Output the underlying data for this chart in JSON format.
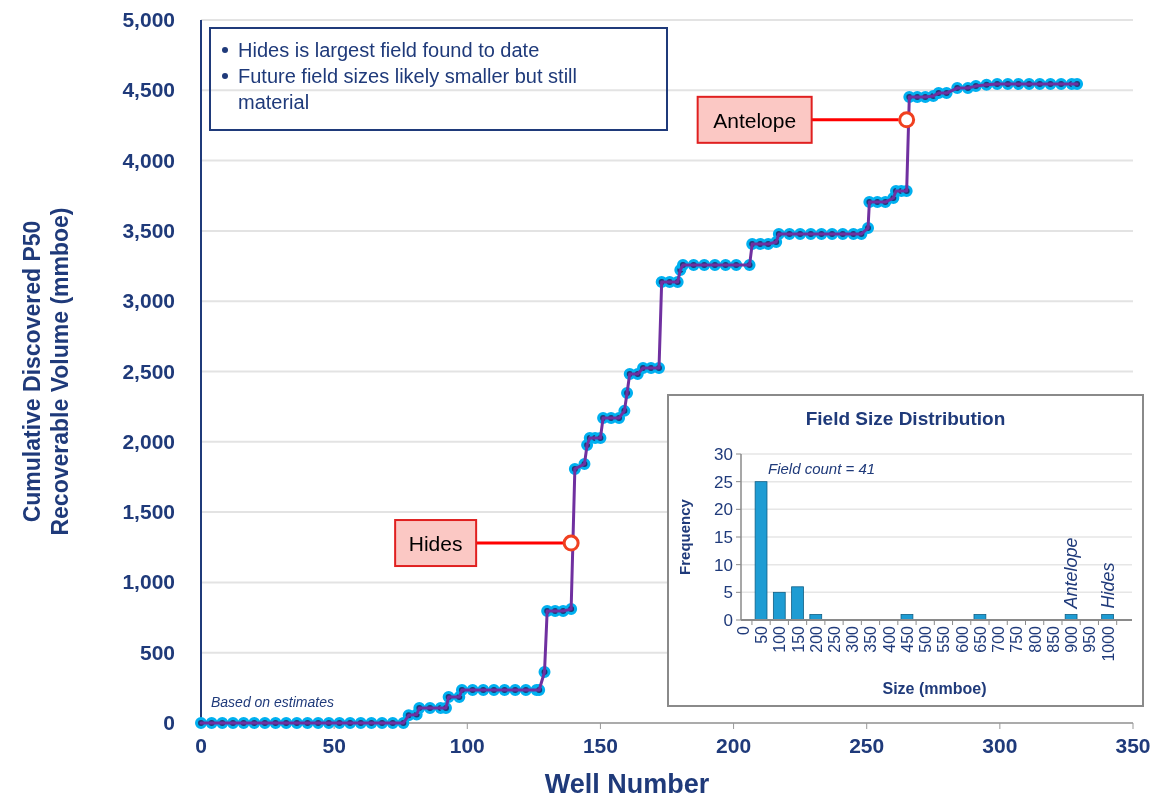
{
  "chart_data": [
    {
      "type": "line",
      "xlabel": "Well Number",
      "ylabel": "Cumulative Discovered P50\nRecoverable  Volume (mmboe)",
      "xlim": [
        0,
        350
      ],
      "xticks": [
        0,
        50,
        100,
        150,
        200,
        250,
        300,
        350
      ],
      "ylim": [
        0,
        5000
      ],
      "yticks": [
        0,
        500,
        {
          "value": 1000,
          "label": "1,000"
        },
        {
          "value": 1500,
          "label": "1,500"
        },
        {
          "value": 2000,
          "label": "2,000"
        },
        {
          "value": 2500,
          "label": "2,500"
        },
        {
          "value": 3000,
          "label": "3,000"
        },
        {
          "value": 3500,
          "label": "3,500"
        },
        {
          "value": 4000,
          "label": "4,000"
        },
        {
          "value": 4500,
          "label": "4,500"
        },
        {
          "value": 5000,
          "label": "5,000"
        }
      ],
      "grid": "y",
      "x": [
        0,
        4,
        8,
        12,
        16,
        20,
        24,
        28,
        32,
        36,
        40,
        44,
        48,
        52,
        56,
        60,
        64,
        68,
        72,
        76,
        78,
        81,
        82,
        86,
        90,
        92,
        93,
        97,
        98,
        102,
        106,
        110,
        114,
        118,
        122,
        126,
        127,
        129,
        130,
        133,
        136,
        139,
        140.4,
        144,
        145,
        146,
        148,
        150,
        151,
        154,
        157,
        159,
        160,
        161,
        164,
        166,
        169,
        172,
        173,
        176,
        179,
        180,
        181,
        185,
        189,
        193,
        197,
        201,
        206,
        207,
        210,
        213,
        216,
        217,
        221,
        225,
        229,
        233,
        237,
        241,
        245,
        248,
        250.5,
        251,
        254,
        257,
        260,
        261,
        263,
        265,
        266,
        269,
        272,
        275,
        277,
        280,
        284,
        288,
        291,
        295,
        299,
        303,
        307,
        311,
        315,
        319,
        323,
        327,
        329
      ],
      "series": [
        {
          "type": "line",
          "color": "#7030a0",
          "marker": "none",
          "values": [
            0,
            0,
            0,
            0,
            0,
            0,
            0,
            0,
            0,
            0,
            0,
            0,
            0,
            0,
            0,
            0,
            0,
            0,
            0,
            0,
            55,
            60,
            107,
            107,
            107,
            107,
            185,
            185,
            235,
            235,
            235,
            235,
            235,
            235,
            235,
            235,
            235,
            363,
            797,
            797,
            797,
            810,
            1807,
            1842,
            1977,
            2027,
            2027,
            2027,
            2170,
            2170,
            2170,
            2220,
            2347,
            2482,
            2482,
            2525,
            2525,
            2525,
            3137,
            3137,
            3137,
            3222,
            3257,
            3257,
            3257,
            3257,
            3257,
            3257,
            3257,
            3407,
            3407,
            3407,
            3421,
            3478,
            3478,
            3478,
            3478,
            3478,
            3478,
            3478,
            3478,
            3478,
            3520,
            3705,
            3705,
            3705,
            3734,
            3784,
            3784,
            3784,
            4452,
            4452,
            4452,
            4460,
            4480,
            4480,
            4516,
            4516,
            4530,
            4540,
            4545,
            4545,
            4545,
            4545,
            4545,
            4545,
            4545,
            4545,
            4545
          ]
        },
        {
          "type": "scatter",
          "color": "#00b0f0",
          "marker": "circle",
          "values": [
            0,
            0,
            0,
            0,
            0,
            0,
            0,
            0,
            0,
            0,
            0,
            0,
            0,
            0,
            0,
            0,
            0,
            0,
            0,
            0,
            55,
            60,
            107,
            107,
            107,
            107,
            185,
            185,
            235,
            235,
            235,
            235,
            235,
            235,
            235,
            235,
            235,
            363,
            797,
            797,
            797,
            810,
            1807,
            1842,
            1977,
            2027,
            2027,
            2027,
            2170,
            2170,
            2170,
            2220,
            2347,
            2482,
            2482,
            2525,
            2525,
            2525,
            3137,
            3137,
            3137,
            3222,
            3257,
            3257,
            3257,
            3257,
            3257,
            3257,
            3257,
            3407,
            3407,
            3407,
            3421,
            3478,
            3478,
            3478,
            3478,
            3478,
            3478,
            3478,
            3478,
            3478,
            3520,
            3705,
            3705,
            3705,
            3734,
            3784,
            3784,
            3784,
            4452,
            4452,
            4452,
            4460,
            4480,
            4480,
            4516,
            4516,
            4530,
            4540,
            4545,
            4545,
            4545,
            4545,
            4545,
            4545,
            4545,
            4545,
            4545
          ]
        }
      ],
      "annotations": [
        "Hides is largest field found to date",
        "Future field sizes likely smaller but still material",
        "Based on estimates",
        {
          "text": "Hides",
          "x": 139,
          "y": 1280
        },
        {
          "text": "Antelope",
          "x": 265,
          "y": 4290
        }
      ]
    },
    {
      "type": "bar",
      "title": "Field Size Distribution",
      "xlabel": "Size (mmboe)",
      "ylabel": "Frequency",
      "categories": [
        "0",
        "50",
        "100",
        "150",
        "200",
        "250",
        "300",
        "350",
        "400",
        "450",
        "500",
        "550",
        "600",
        "650",
        "700",
        "750",
        "800",
        "850",
        "900",
        "950",
        "1000"
      ],
      "values": [
        0,
        25,
        5,
        6,
        1,
        0,
        0,
        0,
        0,
        1,
        0,
        0,
        0,
        1,
        0,
        0,
        0,
        0,
        1,
        0,
        1
      ],
      "color": "#1e9cd3",
      "ylim": [
        0,
        30
      ],
      "yticks": [
        0,
        5,
        10,
        15,
        20,
        25,
        30
      ],
      "grid": "y",
      "annotations": [
        "Field count = 41",
        {
          "text": "Antelope",
          "x": "900",
          "y": 1
        },
        {
          "text": "Hides",
          "x": "1000",
          "y": 1
        }
      ]
    }
  ]
}
